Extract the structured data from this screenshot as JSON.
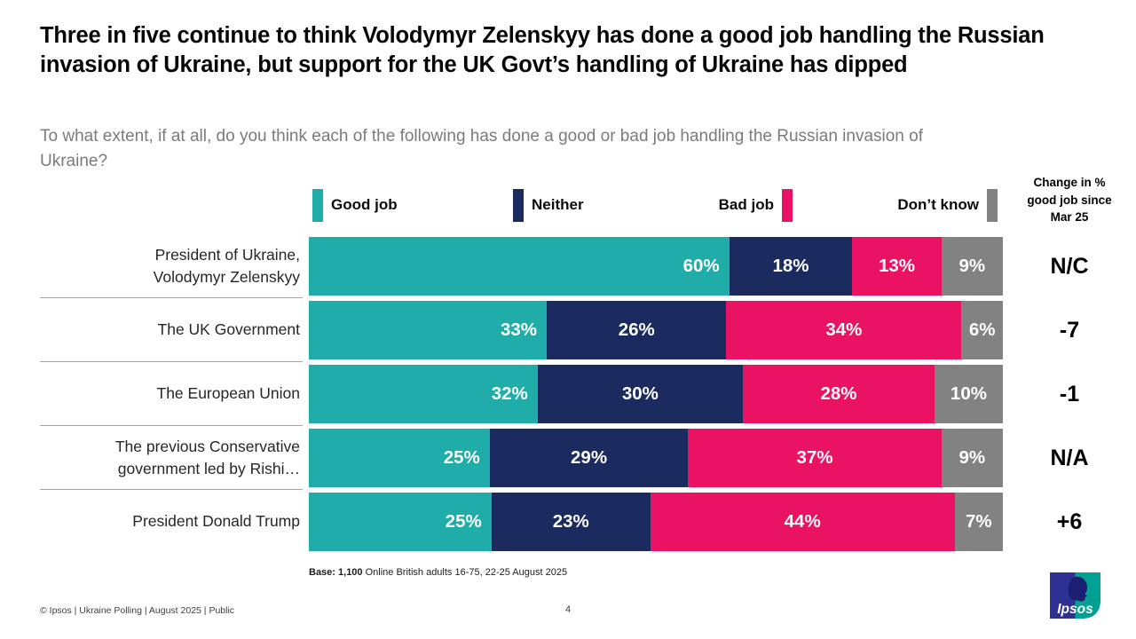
{
  "slide": {
    "title": "Three in five continue to think Volodymyr Zelenskyy has done a good job handling the Russian invasion of Ukraine, but support for the UK Govt’s handling of Ukraine has dipped",
    "subtitle": "To what extent, if at all, do you think each of the following has done a good or bad job handling the Russian invasion of Ukraine?",
    "base_note_bold": "Base: 1,100",
    "base_note_rest": " Online British adults 16-75, 22-25 August 2025",
    "footer": "© Ipsos | Ukraine Polling | August 2025 | Public",
    "page_number": "4",
    "logo_text": "Ipsos"
  },
  "brand": {
    "logo_blue": "#2E3192",
    "logo_teal": "#00A093",
    "logo_dark": "#1A1F71"
  },
  "chart_data": {
    "type": "bar",
    "orientation": "horizontal",
    "stacked": true,
    "xlim": [
      0,
      100
    ],
    "legend_position": "top",
    "categories": [
      "President of Ukraine,\nVolodymyr Zelenskyy",
      "The UK Government",
      "The European Union",
      "The previous Conservative\ngovernment led by Rishi…",
      "President Donald Trump"
    ],
    "series": [
      {
        "name": "Good job",
        "color": "#20ADA9",
        "values": [
          60,
          33,
          32,
          25,
          25
        ]
      },
      {
        "name": "Neither",
        "color": "#1B2A5F",
        "values": [
          18,
          26,
          30,
          29,
          23
        ]
      },
      {
        "name": "Bad job",
        "color": "#EA1263",
        "values": [
          13,
          34,
          28,
          37,
          44
        ]
      },
      {
        "name": "Don’t know",
        "color": "#828282",
        "values": [
          9,
          6,
          10,
          9,
          7
        ]
      }
    ],
    "value_suffix": "%",
    "change_column": {
      "header": "Change in % good job since Mar 25",
      "values": [
        "N/C",
        "-7",
        "-1",
        "N/A",
        "+6"
      ]
    }
  }
}
